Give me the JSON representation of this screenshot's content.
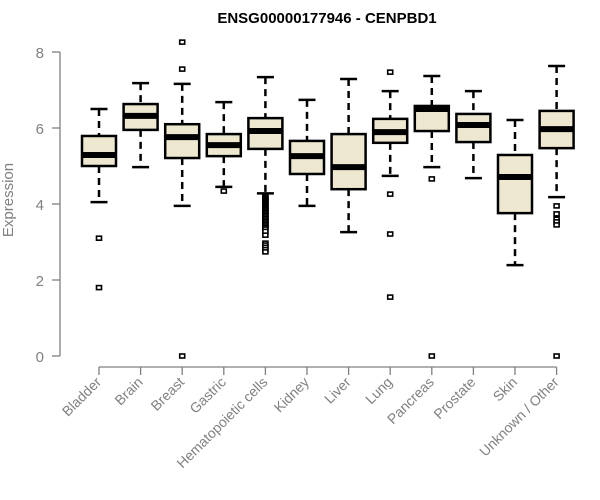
{
  "chart_data": {
    "type": "boxplot",
    "title": "ENSG00000177946 - CENPBD1",
    "xlabel": "",
    "ylabel": "Expression",
    "ylim": [
      0,
      8
    ],
    "yticks": [
      0,
      2,
      4,
      6,
      8
    ],
    "grid": false,
    "legend": "none",
    "colors": {
      "box_fill": "#EEE8D0",
      "box_stroke": "#000000",
      "axis": "#808080",
      "title": "#000000"
    },
    "categories": [
      "Bladder",
      "Brain",
      "Breast",
      "Gastric",
      "Hematopoietic cells",
      "Kidney",
      "Liver",
      "Lung",
      "Pancreas",
      "Prostate",
      "Skin",
      "Unknown / Other"
    ],
    "boxes": [
      {
        "name": "Bladder",
        "whisker_low": 4.05,
        "q1": 5.0,
        "median": 5.29,
        "q3": 5.79,
        "whisker_high": 6.5,
        "outliers": [
          3.1,
          1.8
        ]
      },
      {
        "name": "Brain",
        "whisker_low": 4.97,
        "q1": 5.95,
        "median": 6.32,
        "q3": 6.63,
        "whisker_high": 7.18,
        "outliers": []
      },
      {
        "name": "Breast",
        "whisker_low": 3.95,
        "q1": 5.21,
        "median": 5.76,
        "q3": 6.1,
        "whisker_high": 7.16,
        "outliers": [
          8.26,
          7.55,
          0.0
        ]
      },
      {
        "name": "Gastric",
        "whisker_low": 4.45,
        "q1": 5.26,
        "median": 5.55,
        "q3": 5.84,
        "whisker_high": 6.68,
        "outliers": [
          4.34
        ]
      },
      {
        "name": "Hematopoietic cells",
        "whisker_low": 4.28,
        "q1": 5.45,
        "median": 5.92,
        "q3": 6.26,
        "whisker_high": 7.34,
        "outliers": [
          4.22,
          4.18,
          4.14,
          4.1,
          4.06,
          4.02,
          3.98,
          3.94,
          3.9,
          3.86,
          3.82,
          3.78,
          3.74,
          3.7,
          3.66,
          3.62,
          3.58,
          3.54,
          3.5,
          3.46,
          3.42,
          3.38,
          3.34,
          3.28,
          3.18,
          2.97,
          2.92,
          2.86,
          2.8,
          2.74
        ]
      },
      {
        "name": "Kidney",
        "whisker_low": 3.95,
        "q1": 4.79,
        "median": 5.26,
        "q3": 5.66,
        "whisker_high": 6.74,
        "outliers": []
      },
      {
        "name": "Liver",
        "whisker_low": 3.26,
        "q1": 4.39,
        "median": 4.97,
        "q3": 5.84,
        "whisker_high": 7.29,
        "outliers": []
      },
      {
        "name": "Lung",
        "whisker_low": 4.74,
        "q1": 5.61,
        "median": 5.89,
        "q3": 6.24,
        "whisker_high": 6.97,
        "outliers": [
          7.47,
          4.26,
          3.21,
          1.55
        ]
      },
      {
        "name": "Pancreas",
        "whisker_low": 4.97,
        "q1": 5.92,
        "median": 6.5,
        "q3": 6.58,
        "whisker_high": 7.37,
        "outliers": [
          4.66,
          0.0
        ]
      },
      {
        "name": "Prostate",
        "whisker_low": 4.68,
        "q1": 5.63,
        "median": 6.08,
        "q3": 6.37,
        "whisker_high": 6.97,
        "outliers": []
      },
      {
        "name": "Skin",
        "whisker_low": 2.39,
        "q1": 3.76,
        "median": 4.71,
        "q3": 5.29,
        "whisker_high": 6.21,
        "outliers": []
      },
      {
        "name": "Unknown / Other",
        "whisker_low": 4.18,
        "q1": 5.47,
        "median": 5.97,
        "q3": 6.45,
        "whisker_high": 7.63,
        "outliers": [
          3.95,
          3.74,
          3.6,
          3.53,
          3.45,
          0.0
        ]
      }
    ]
  }
}
